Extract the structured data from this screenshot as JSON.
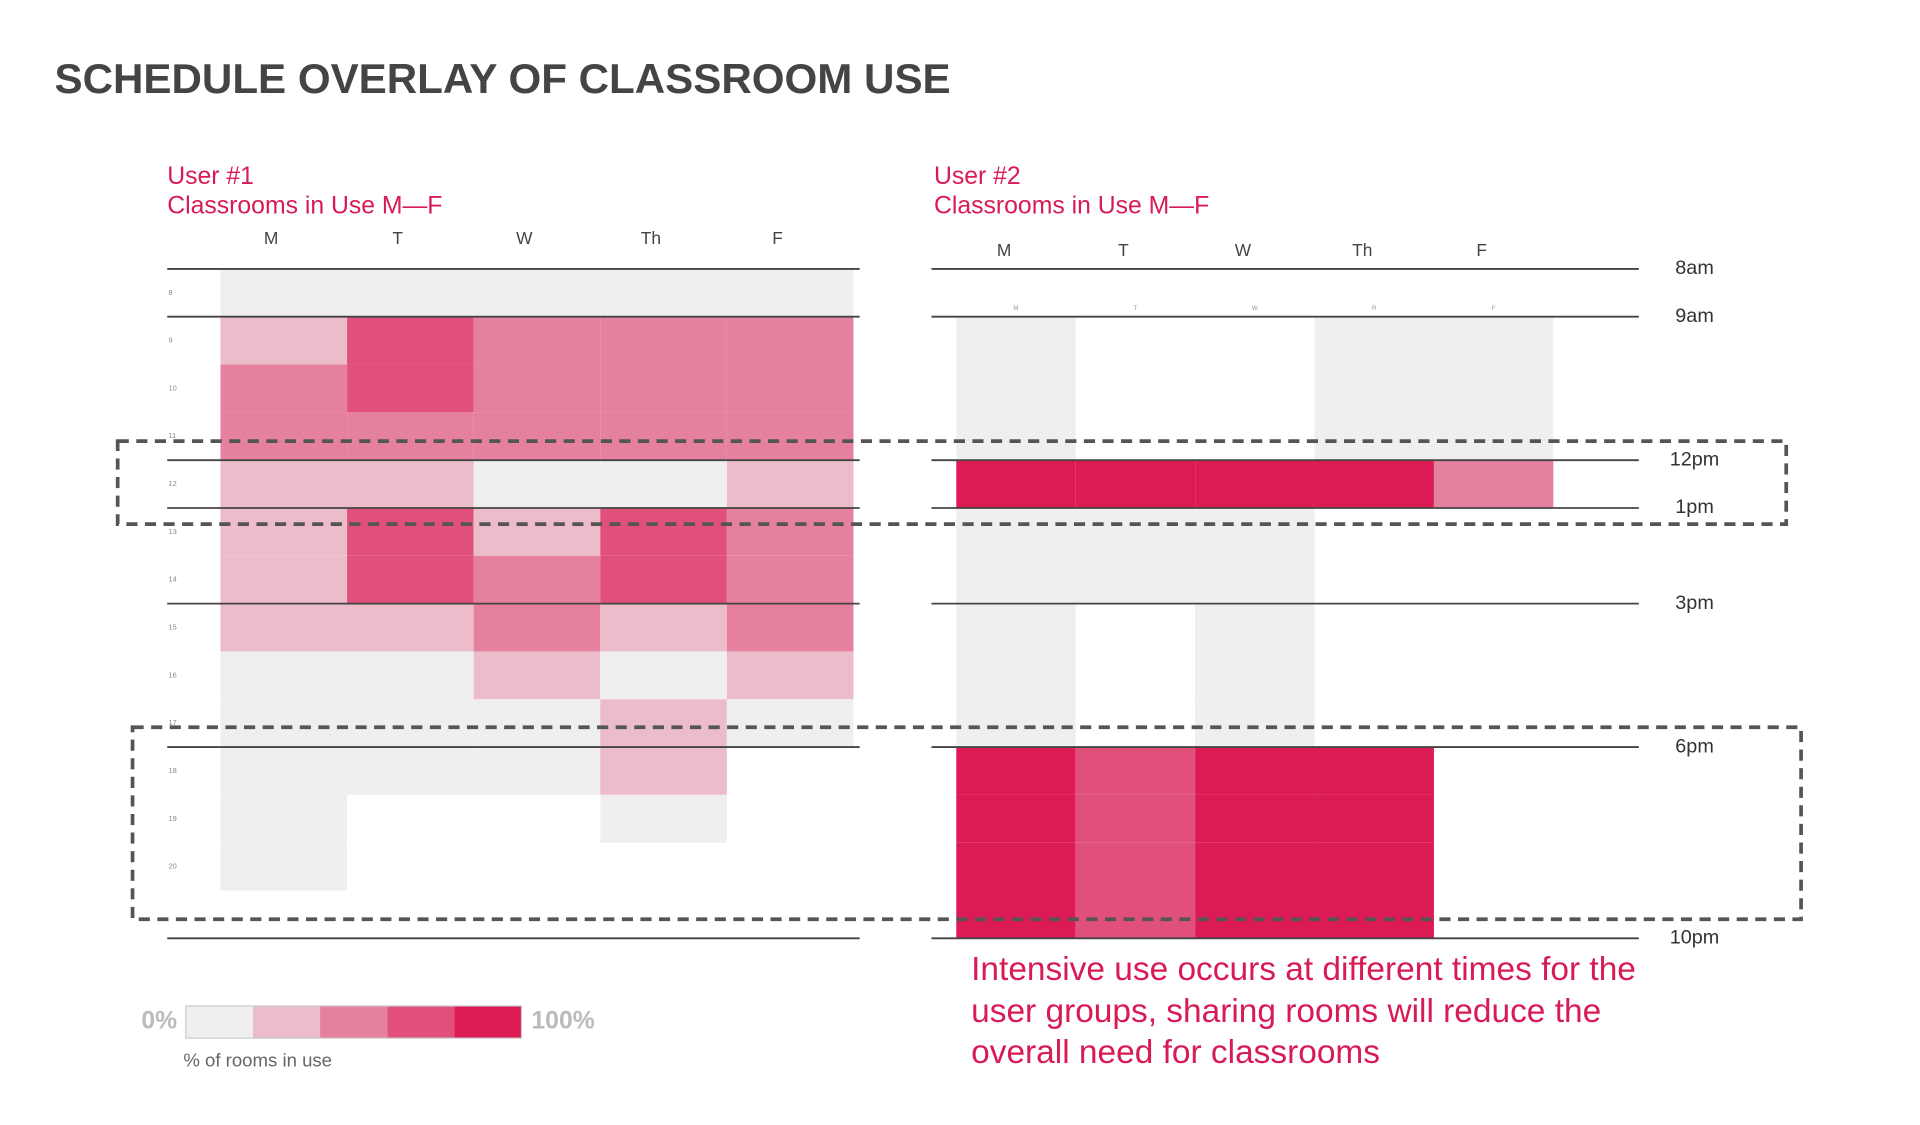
{
  "title": "SCHEDULE OVERLAY OF CLASSROOM USE",
  "chart_data": [
    {
      "type": "heatmap",
      "title": "User #1",
      "subtitle": "Classrooms in Use M—F",
      "x": [
        "M",
        "T",
        "W",
        "Th",
        "F"
      ],
      "y": [
        8,
        9,
        10,
        11,
        12,
        13,
        14,
        15,
        16,
        17,
        18,
        19,
        20
      ],
      "ylim": [
        8,
        22
      ],
      "values": [
        [
          0,
          0,
          0,
          0,
          0
        ],
        [
          25,
          75,
          50,
          50,
          50
        ],
        [
          50,
          75,
          50,
          50,
          50
        ],
        [
          50,
          50,
          50,
          50,
          50
        ],
        [
          25,
          25,
          0,
          0,
          25
        ],
        [
          25,
          75,
          25,
          75,
          50
        ],
        [
          25,
          75,
          50,
          75,
          50
        ],
        [
          25,
          25,
          50,
          25,
          50
        ],
        [
          0,
          0,
          25,
          0,
          25
        ],
        [
          0,
          0,
          0,
          25,
          0
        ],
        [
          0,
          0,
          0,
          25,
          null
        ],
        [
          0,
          null,
          null,
          0,
          null
        ],
        [
          0,
          null,
          null,
          null,
          null
        ]
      ]
    },
    {
      "type": "heatmap",
      "title": "User #2",
      "subtitle": "Classrooms in Use M—F",
      "x": [
        "M",
        "T",
        "W",
        "Th",
        "F"
      ],
      "minor_labels": [
        "M",
        "T",
        "W",
        "R",
        "F"
      ],
      "y": [
        8,
        9,
        10,
        11,
        12,
        13,
        14,
        15,
        16,
        17,
        18,
        19,
        20,
        21
      ],
      "ylim": [
        8,
        22
      ],
      "yticks": [
        {
          "value": 8,
          "label": "8am"
        },
        {
          "value": 9,
          "label": "9am"
        },
        {
          "value": 12,
          "label": "12pm"
        },
        {
          "value": 13,
          "label": "1pm"
        },
        {
          "value": 15,
          "label": "3pm"
        },
        {
          "value": 18,
          "label": "6pm"
        },
        {
          "value": 22,
          "label": "10pm"
        }
      ],
      "values": [
        [
          null,
          null,
          null,
          null,
          null
        ],
        [
          0,
          null,
          null,
          0,
          0
        ],
        [
          0,
          null,
          null,
          0,
          0
        ],
        [
          0,
          null,
          null,
          0,
          0
        ],
        [
          100,
          100,
          100,
          100,
          50
        ],
        [
          0,
          0,
          0,
          null,
          null
        ],
        [
          0,
          0,
          0,
          null,
          null
        ],
        [
          0,
          null,
          0,
          null,
          null
        ],
        [
          0,
          null,
          0,
          null,
          null
        ],
        [
          0,
          null,
          0,
          null,
          null
        ],
        [
          100,
          75,
          100,
          100,
          null
        ],
        [
          100,
          75,
          100,
          100,
          null
        ],
        [
          100,
          75,
          100,
          100,
          null
        ],
        [
          100,
          75,
          100,
          100,
          null
        ]
      ]
    }
  ],
  "legend": {
    "steps": [
      0,
      25,
      50,
      75,
      100
    ],
    "colors": [
      "#efefef",
      "#ecbccb",
      "#e5819f",
      "#e0507a",
      "#dc1b55"
    ],
    "ticks": [
      {
        "value": 0,
        "label": "0%"
      },
      {
        "value": 100,
        "label": "100%"
      }
    ],
    "caption": "% of rooms in use"
  },
  "note": [
    "Intensive use occurs at different times for the",
    "user groups, sharing rooms will reduce the",
    "overall need for classrooms"
  ]
}
